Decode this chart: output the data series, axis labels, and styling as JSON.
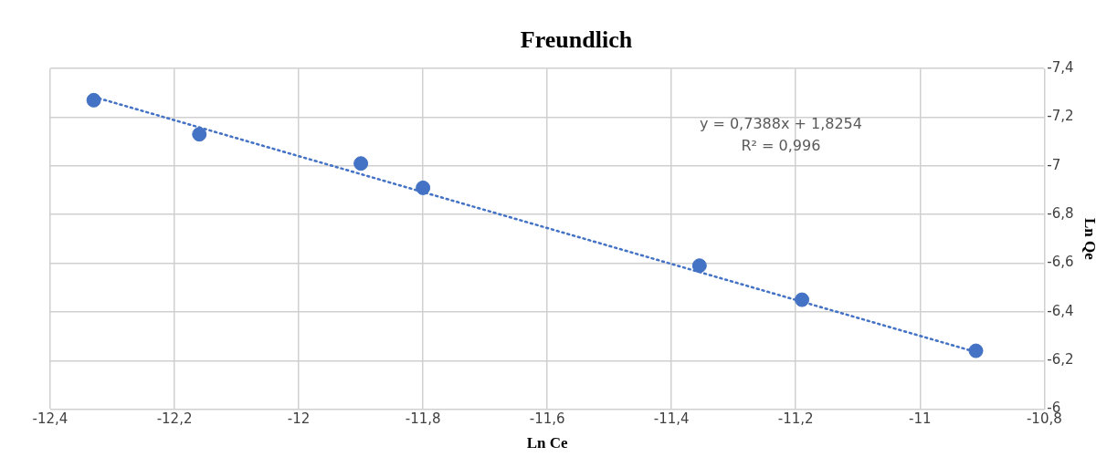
{
  "chart_data": {
    "type": "scatter",
    "title": "Freundlich",
    "xlabel": "Ln Ce",
    "ylabel": "Ln Qe",
    "series": [
      {
        "color": "#4472c4",
        "marker": "circle",
        "x": [
          -12.33,
          -12.16,
          -11.9,
          -11.8,
          -11.355,
          -11.19,
          -10.91
        ],
        "values": [
          -7.27,
          -7.13,
          -7.01,
          -6.91,
          -6.59,
          -6.45,
          -6.24
        ]
      },
      {
        "type": "line",
        "color": "#4472c4",
        "marker": "none",
        "line_style": "dotted",
        "x": [
          -12.33,
          -10.91
        ],
        "values": [
          -7.284,
          -6.235
        ]
      }
    ],
    "xlim": [
      -12.4,
      -10.8
    ],
    "xticks": [
      {
        "value": -12.4,
        "label": "-12,4"
      },
      {
        "value": -12.2,
        "label": "-12,2"
      },
      -12,
      {
        "value": -11.8,
        "label": "-11,8"
      },
      {
        "value": -11.6,
        "label": "-11,6"
      },
      {
        "value": -11.4,
        "label": "-11,4"
      },
      {
        "value": -11.2,
        "label": "-11,2"
      },
      -11,
      {
        "value": -10.8,
        "label": "-10,8"
      }
    ],
    "ylim": [
      -6,
      -7.4
    ],
    "yticks": [
      -6,
      {
        "value": -6.2,
        "label": "-6,2"
      },
      {
        "value": -6.4,
        "label": "-6,4"
      },
      {
        "value": -6.6,
        "label": "-6,6"
      },
      {
        "value": -6.8,
        "label": "-6,8"
      },
      -7,
      {
        "value": -7.2,
        "label": "-7,2"
      },
      {
        "value": -7.4,
        "label": "-7,4"
      }
    ],
    "grid": true,
    "legend": false,
    "annotations": [
      "y = 0,7388x + 1,8254",
      "R² = 0,996"
    ]
  }
}
